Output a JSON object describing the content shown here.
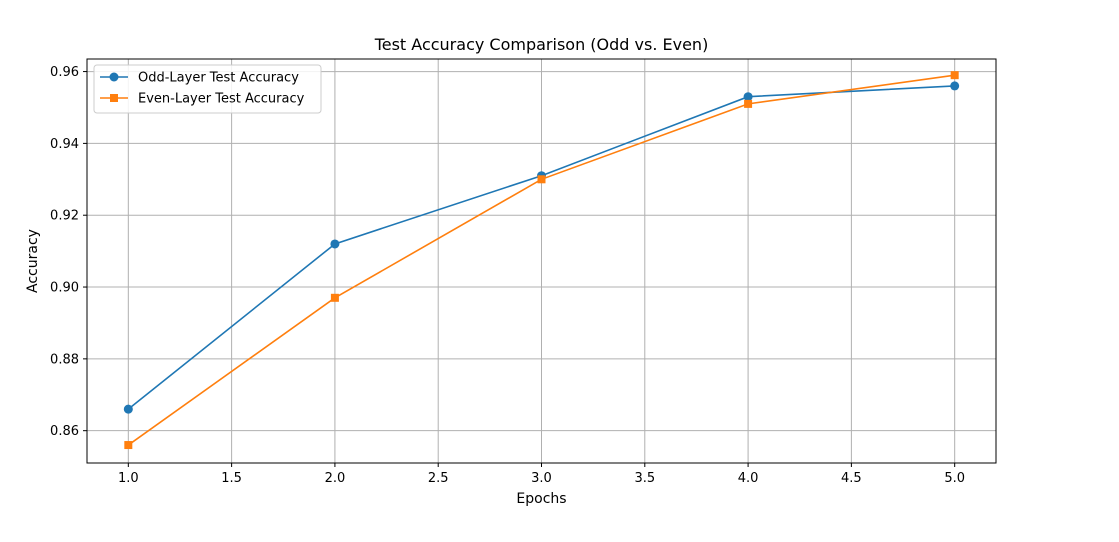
{
  "chart_data": {
    "type": "line",
    "title": "Test Accuracy Comparison (Odd vs. Even)",
    "xlabel": "Epochs",
    "ylabel": "Accuracy",
    "xlim": [
      0.8,
      5.2
    ],
    "ylim": [
      0.851,
      0.9635
    ],
    "xticks": [
      1.0,
      1.5,
      2.0,
      2.5,
      3.0,
      3.5,
      4.0,
      4.5,
      5.0
    ],
    "xtick_labels": [
      "1.0",
      "1.5",
      "2.0",
      "2.5",
      "3.0",
      "3.5",
      "4.0",
      "4.5",
      "5.0"
    ],
    "yticks": [
      0.86,
      0.88,
      0.9,
      0.92,
      0.94,
      0.96
    ],
    "ytick_labels": [
      "0.86",
      "0.88",
      "0.90",
      "0.92",
      "0.94",
      "0.96"
    ],
    "grid": true,
    "legend_position": "top-left",
    "x": [
      1,
      2,
      3,
      4,
      5
    ],
    "series": [
      {
        "name": "Odd-Layer Test Accuracy",
        "values": [
          0.866,
          0.912,
          0.931,
          0.953,
          0.956
        ],
        "color": "#1f77b4",
        "marker": "circle"
      },
      {
        "name": "Even-Layer Test Accuracy",
        "values": [
          0.856,
          0.897,
          0.93,
          0.951,
          0.959
        ],
        "color": "#ff7f0e",
        "marker": "square"
      }
    ]
  }
}
